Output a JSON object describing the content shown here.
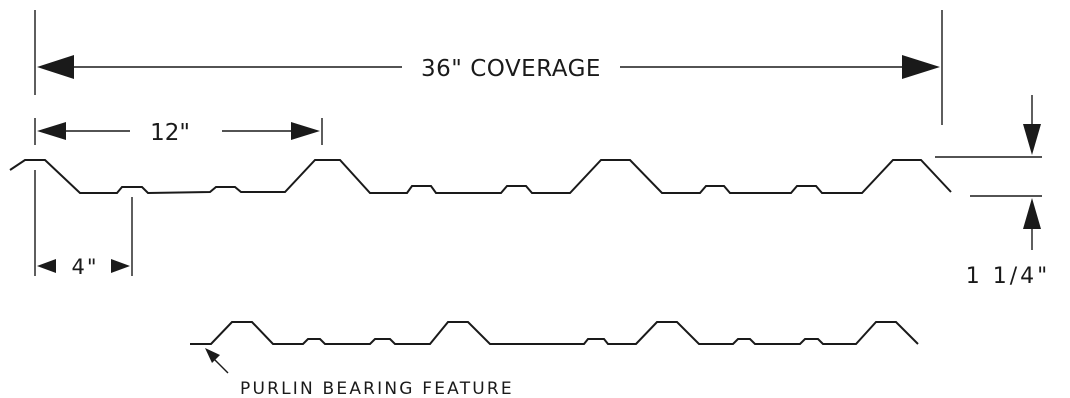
{
  "diagram": {
    "coverage_label": "36\" COVERAGE",
    "rib_spacing_label": "12\"",
    "minor_spacing_label": "4\"",
    "rib_height_label": "1 1/4\"",
    "feature_label": "PURLIN BEARING FEATURE"
  }
}
